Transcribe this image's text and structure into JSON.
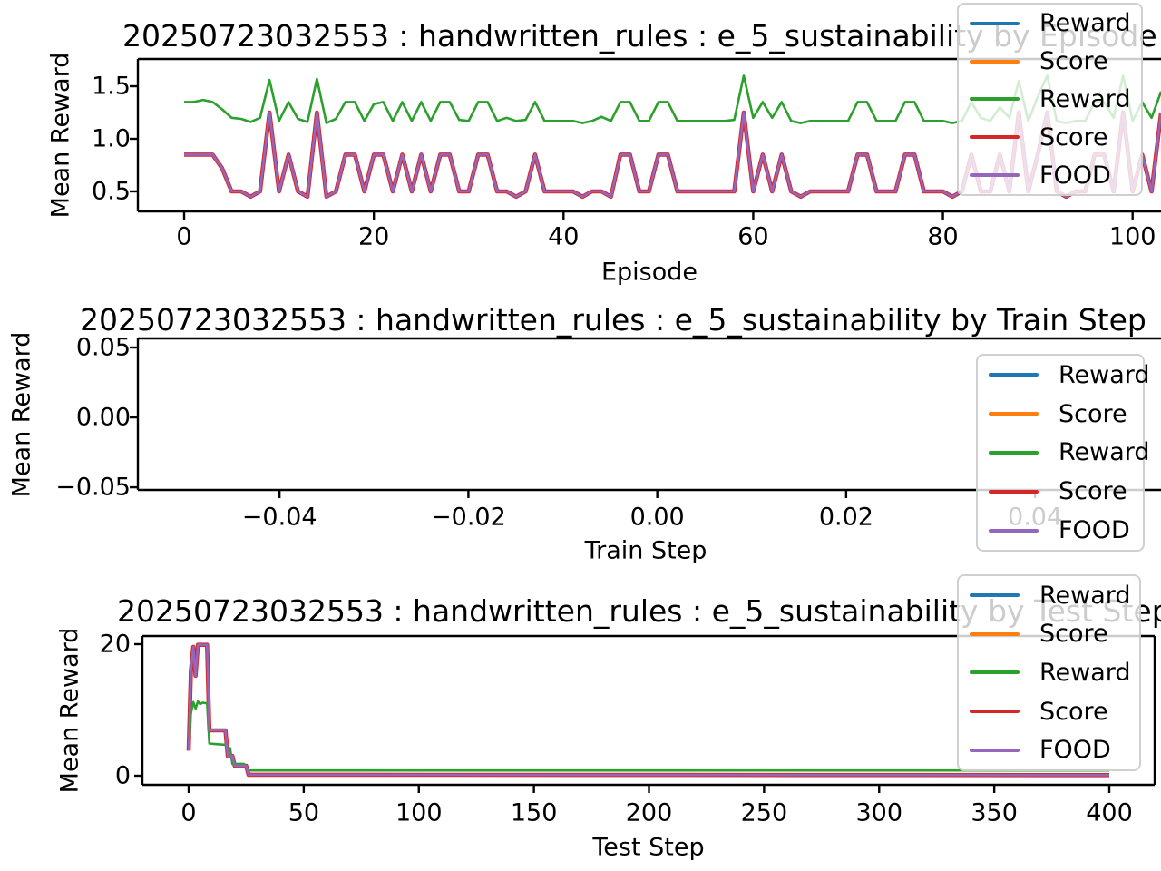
{
  "figure": {
    "background": "#ffffff"
  },
  "legend": {
    "entries": [
      {
        "label": "Reward",
        "color": "#1f77b4"
      },
      {
        "label": "Score",
        "color": "#ff7f0e"
      },
      {
        "label": "Reward",
        "color": "#2ca02c"
      },
      {
        "label": "Score",
        "color": "#d62728"
      },
      {
        "label": "FOOD",
        "color": "#9467bd"
      }
    ]
  },
  "chart_data": [
    {
      "type": "line",
      "title": "20250723032553 : handwritten_rules : e_5_sustainability by Episode",
      "xlabel": "Episode",
      "ylabel": "Mean Reward",
      "xlim": [
        -4.88,
        103.95
      ],
      "ylim": [
        0.31,
        1.759
      ],
      "xticks": {
        "values": [
          0,
          20,
          40,
          60,
          80,
          100
        ],
        "labels": [
          "0",
          "20",
          "40",
          "60",
          "80",
          "100"
        ]
      },
      "yticks": {
        "values": [
          0.5,
          1.0,
          1.5
        ],
        "labels": [
          "0.5",
          "1.0",
          "1.5"
        ]
      },
      "legend_position": "upper right",
      "series": [
        {
          "name": "Score",
          "color": "#d62728",
          "width": 4.6,
          "y_from": "FOOD"
        },
        {
          "name": "Reward",
          "color": "#2ca02c",
          "width": 2.6,
          "y": [
            1.35,
            1.35,
            1.37,
            1.35,
            1.28,
            1.2,
            1.19,
            1.16,
            1.2,
            1.56,
            1.17,
            1.35,
            1.19,
            1.16,
            1.57,
            1.15,
            1.19,
            1.35,
            1.35,
            1.17,
            1.33,
            1.35,
            1.17,
            1.35,
            1.17,
            1.35,
            1.17,
            1.35,
            1.35,
            1.18,
            1.17,
            1.35,
            1.35,
            1.17,
            1.2,
            1.17,
            1.18,
            1.35,
            1.17,
            1.17,
            1.17,
            1.17,
            1.15,
            1.17,
            1.21,
            1.17,
            1.35,
            1.35,
            1.17,
            1.17,
            1.35,
            1.35,
            1.17,
            1.17,
            1.17,
            1.17,
            1.17,
            1.17,
            1.18,
            1.6,
            1.2,
            1.35,
            1.2,
            1.35,
            1.17,
            1.15,
            1.17,
            1.17,
            1.17,
            1.17,
            1.17,
            1.35,
            1.35,
            1.17,
            1.17,
            1.17,
            1.35,
            1.35,
            1.17,
            1.17,
            1.17,
            1.15,
            1.17,
            1.35,
            1.2,
            1.17,
            1.3,
            1.2,
            1.55,
            1.17,
            1.4,
            1.6,
            1.17,
            1.15,
            1.17,
            1.17,
            1.35,
            1.35,
            1.2,
            1.6,
            1.17,
            1.35,
            1.2,
            1.45
          ]
        },
        {
          "name": "FOOD",
          "color": "#9467bd",
          "width": 2.6,
          "y": [
            0.85,
            0.85,
            0.85,
            0.85,
            0.72,
            0.5,
            0.5,
            0.45,
            0.5,
            1.25,
            0.5,
            0.85,
            0.5,
            0.45,
            1.25,
            0.45,
            0.5,
            0.85,
            0.85,
            0.5,
            0.85,
            0.85,
            0.5,
            0.85,
            0.5,
            0.85,
            0.5,
            0.85,
            0.85,
            0.5,
            0.5,
            0.85,
            0.85,
            0.5,
            0.5,
            0.45,
            0.5,
            0.85,
            0.5,
            0.5,
            0.5,
            0.5,
            0.45,
            0.5,
            0.5,
            0.45,
            0.85,
            0.85,
            0.5,
            0.5,
            0.85,
            0.85,
            0.5,
            0.5,
            0.5,
            0.5,
            0.5,
            0.5,
            0.5,
            1.25,
            0.5,
            0.85,
            0.5,
            0.85,
            0.5,
            0.45,
            0.5,
            0.5,
            0.5,
            0.5,
            0.5,
            0.85,
            0.85,
            0.5,
            0.5,
            0.5,
            0.85,
            0.85,
            0.5,
            0.5,
            0.5,
            0.45,
            0.5,
            0.85,
            0.5,
            0.5,
            0.85,
            0.5,
            1.25,
            0.5,
            0.85,
            1.25,
            0.5,
            0.45,
            0.5,
            0.5,
            0.85,
            0.85,
            0.5,
            1.25,
            0.5,
            0.85,
            0.5,
            1.25
          ]
        }
      ]
    },
    {
      "type": "line",
      "title": "20250723032553 : handwritten_rules : e_5_sustainability by Train Step",
      "xlabel": "Train Step",
      "ylabel": "Mean Reward",
      "xlim": [
        -0.055,
        0.0543
      ],
      "ylim": [
        -0.0519,
        0.0565
      ],
      "xticks": {
        "values": [
          -0.04,
          -0.02,
          0.0,
          0.02,
          0.04
        ],
        "labels": [
          "−0.04",
          "−0.02",
          "0.00",
          "0.02",
          "0.04"
        ]
      },
      "yticks": {
        "values": [
          0.05,
          0.0,
          -0.05
        ],
        "labels": [
          "0.05",
          "0.00",
          "−0.05"
        ]
      },
      "legend_position": "center right",
      "series": []
    },
    {
      "type": "line",
      "title": "20250723032553 : handwritten_rules : e_5_sustainability by Test Step",
      "xlabel": "Test Step",
      "ylabel": "Mean Reward",
      "xlim": [
        -20.1,
        419.7
      ],
      "ylim": [
        -1.38,
        21.24
      ],
      "xticks": {
        "values": [
          0,
          50,
          100,
          150,
          200,
          250,
          300,
          350,
          400
        ],
        "labels": [
          "0",
          "50",
          "100",
          "150",
          "200",
          "250",
          "300",
          "350",
          "400"
        ]
      },
      "yticks": {
        "values": [
          0,
          20
        ],
        "labels": [
          "0",
          "20"
        ]
      },
      "legend_position": "upper right",
      "series": [
        {
          "name": "Score",
          "color": "#d62728",
          "width": 4.6,
          "y_from": "FOOD"
        },
        {
          "name": "Reward",
          "color": "#2ca02c",
          "width": 2.6,
          "points": [
            [
              0,
              4.2
            ],
            [
              1,
              9.5
            ],
            [
              2,
              11.2
            ],
            [
              3,
              10.2
            ],
            [
              4,
              11.3
            ],
            [
              5,
              10.9
            ],
            [
              6,
              11.1
            ],
            [
              8,
              11.0
            ],
            [
              9,
              4.9
            ],
            [
              12,
              4.8
            ],
            [
              16,
              4.7
            ],
            [
              17,
              4.2
            ],
            [
              18,
              4.2
            ],
            [
              19,
              1.8
            ],
            [
              24,
              1.8
            ],
            [
              26,
              0.8
            ],
            [
              400,
              0.8
            ]
          ]
        },
        {
          "name": "FOOD",
          "color": "#9467bd",
          "width": 2.6,
          "points": [
            [
              0,
              3.8
            ],
            [
              1,
              16.0
            ],
            [
              2,
              19.6
            ],
            [
              3,
              15.2
            ],
            [
              4,
              19.9
            ],
            [
              8,
              19.9
            ],
            [
              9,
              6.9
            ],
            [
              16,
              6.9
            ],
            [
              17,
              3.0
            ],
            [
              19,
              3.0
            ],
            [
              20,
              1.5
            ],
            [
              25,
              1.5
            ],
            [
              26,
              0.15
            ],
            [
              400,
              0.1
            ]
          ]
        }
      ]
    }
  ]
}
